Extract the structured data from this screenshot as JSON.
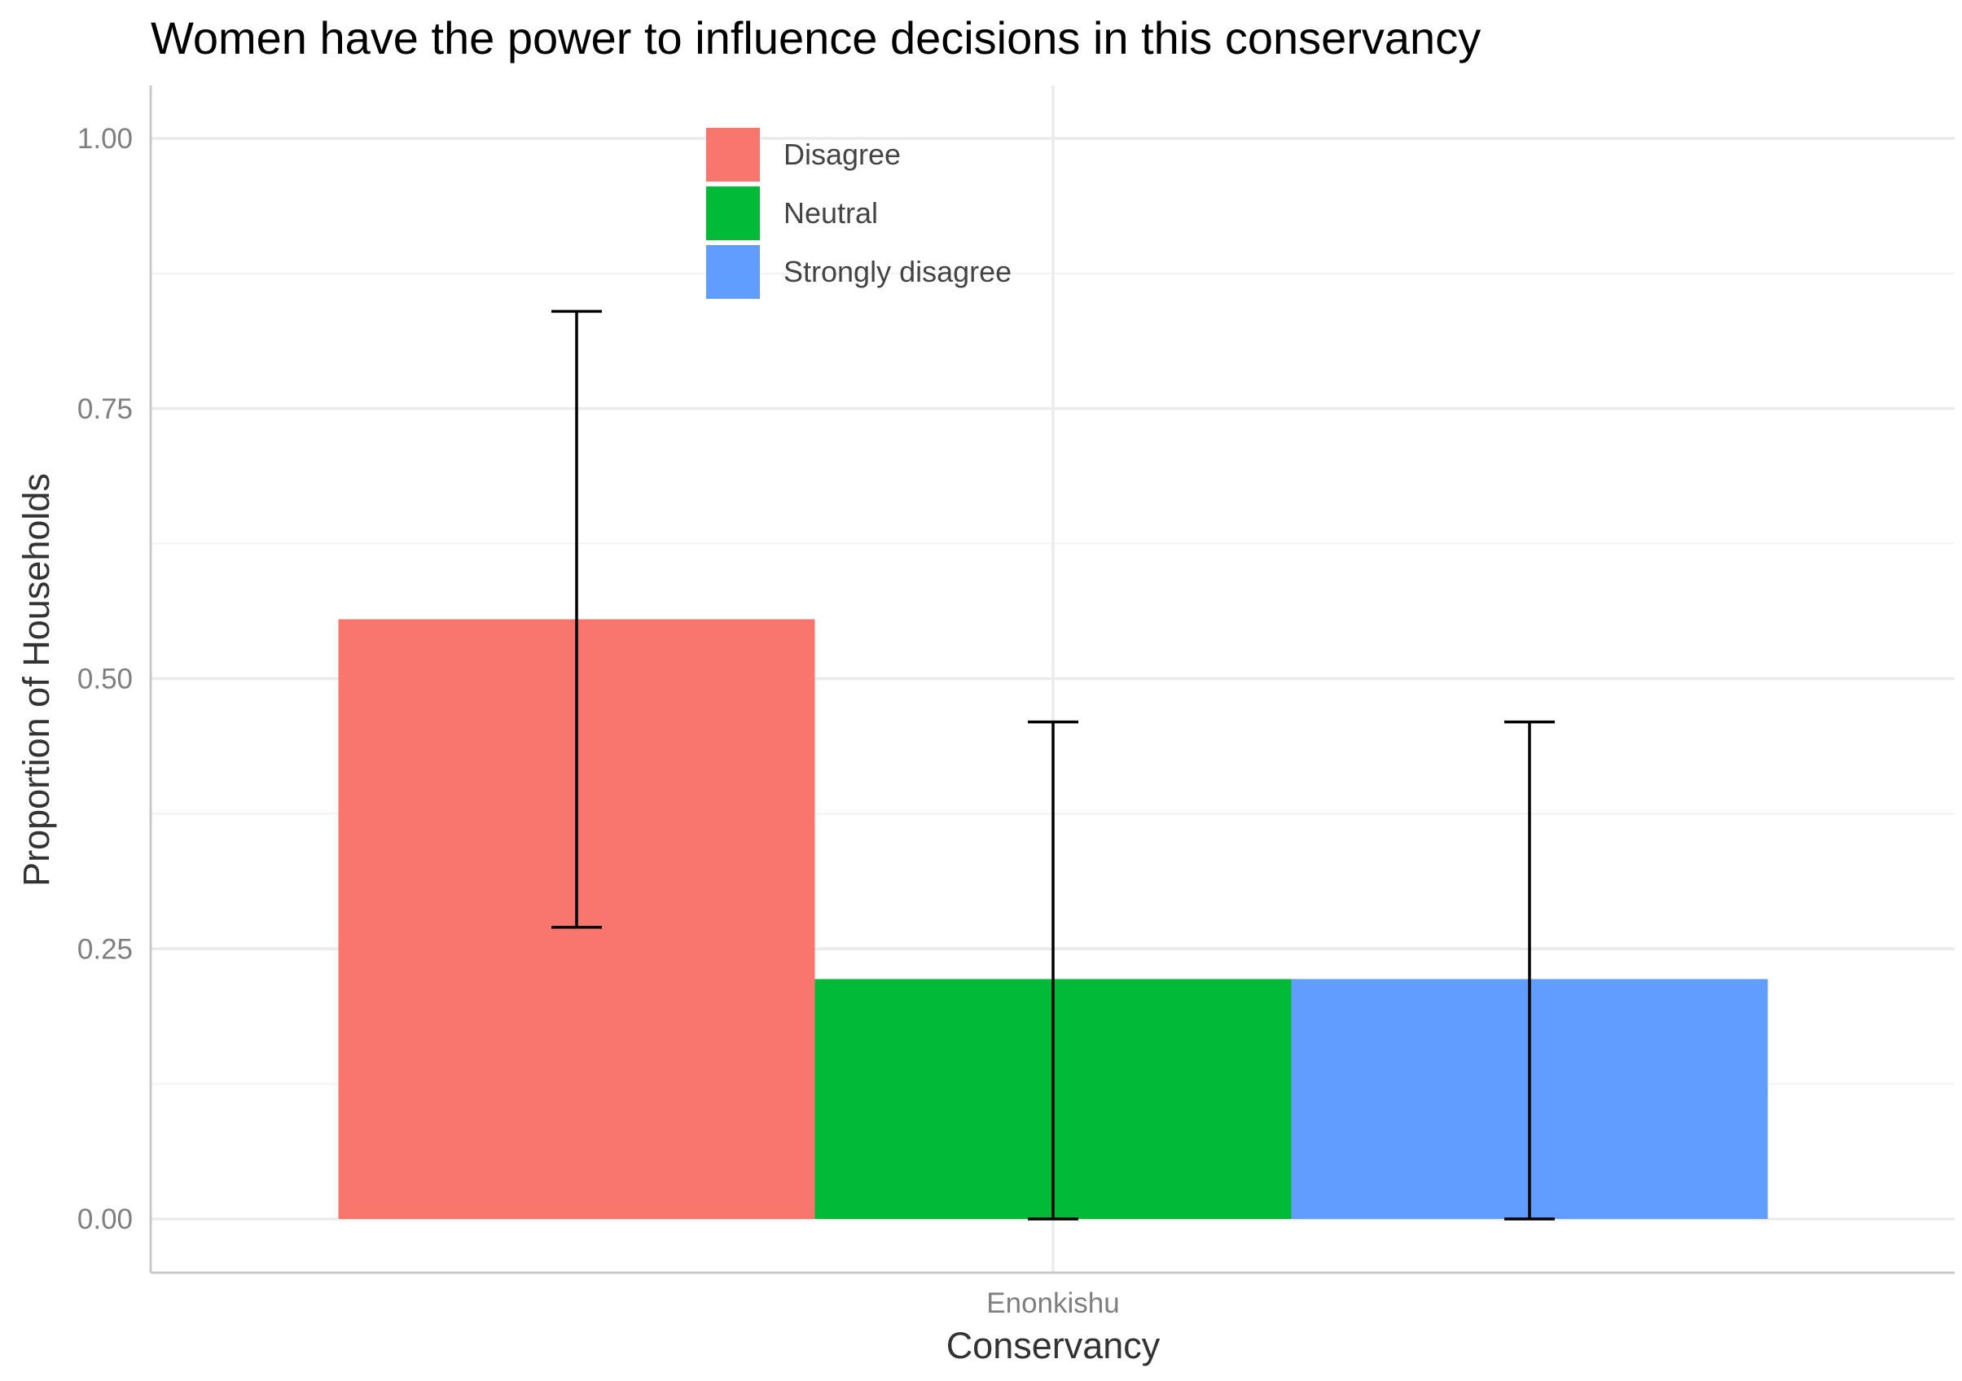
{
  "chart_data": {
    "type": "bar",
    "title": "Women have the power to influence decisions in this conservancy",
    "xlabel": "Conservancy",
    "ylabel": "Proportion of Households",
    "categories": [
      "Enonkishu"
    ],
    "series": [
      {
        "name": "Disagree",
        "color": "#F8766D",
        "values": [
          0.555
        ],
        "error_low": [
          0.27
        ],
        "error_high": [
          0.84
        ]
      },
      {
        "name": "Neutral",
        "color": "#00BA38",
        "values": [
          0.222
        ],
        "error_low": [
          0.0
        ],
        "error_high": [
          0.46
        ]
      },
      {
        "name": "Strongly disagree",
        "color": "#619CFF",
        "values": [
          0.222
        ],
        "error_low": [
          0.0
        ],
        "error_high": [
          0.46
        ]
      }
    ],
    "ylim": [
      -0.05,
      1.05
    ],
    "yticks": [
      0.0,
      0.25,
      0.5,
      0.75,
      1.0
    ],
    "ytick_labels": [
      "0.00",
      "0.25",
      "0.50",
      "0.75",
      "1.00"
    ],
    "grid": true,
    "legend_position": "top-center"
  }
}
